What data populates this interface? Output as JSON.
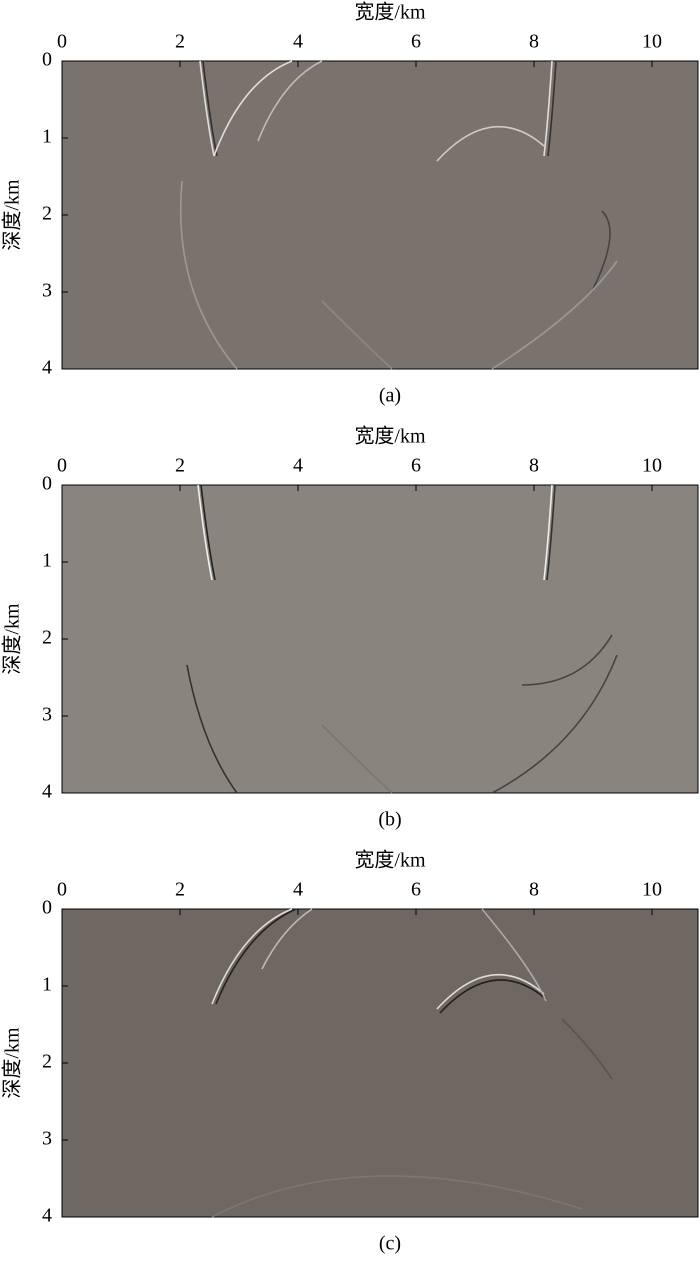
{
  "chart_data": [
    {
      "type": "image",
      "xlabel": "宽度/km",
      "ylabel": "深度/km",
      "caption": "(a)",
      "color": "#7a736d",
      "xlim": [
        0,
        10.78
      ],
      "ylim": [
        0,
        4
      ],
      "xticks": [
        0,
        2,
        4,
        6,
        8,
        10
      ],
      "yticks": [
        0,
        1,
        2,
        3,
        4
      ]
    },
    {
      "type": "image",
      "xlabel": "宽度/km",
      "ylabel": "深度/km",
      "caption": "(b)",
      "color": "#8a847e",
      "xlim": [
        0,
        10.78
      ],
      "ylim": [
        0,
        4
      ],
      "xticks": [
        0,
        2,
        4,
        6,
        8,
        10
      ],
      "yticks": [
        0,
        1,
        2,
        3,
        4
      ]
    },
    {
      "type": "image",
      "xlabel": "宽度/km",
      "ylabel": "深度/km",
      "caption": "(c)",
      "color": "#6f6862",
      "xlim": [
        0,
        10.78
      ],
      "ylim": [
        0,
        4
      ],
      "xticks": [
        0,
        2,
        4,
        6,
        8,
        10
      ],
      "yticks": [
        0,
        1,
        2,
        3,
        4
      ]
    }
  ]
}
